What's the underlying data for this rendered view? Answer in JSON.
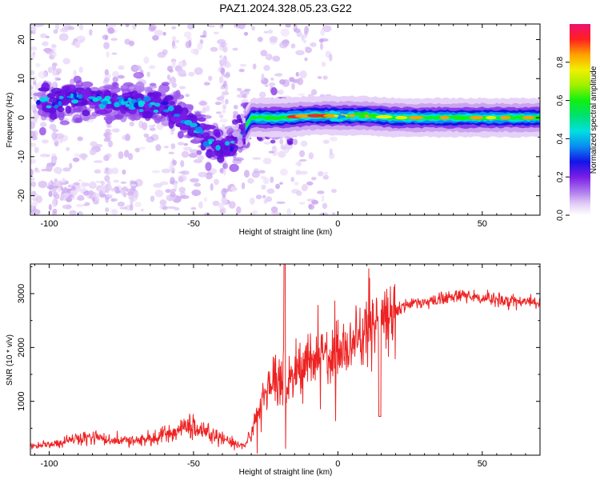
{
  "title": "PAZ1.2024.328.05.23.G22",
  "chart_data": [
    {
      "type": "heatmap",
      "xlabel": "Height of straight line (km)",
      "ylabel": "Frequency (Hz)",
      "xlim": [
        -106.5,
        70
      ],
      "ylim": [
        -25,
        24
      ],
      "xticks": [
        -100,
        -50,
        0,
        50
      ],
      "yticks": [
        -20,
        -10,
        0,
        10,
        20
      ],
      "colorbar": {
        "label": "Normalized spectral amplitude",
        "range": [
          0,
          1
        ],
        "ticks": [
          0.0,
          0.2,
          0.4,
          0.6,
          0.8
        ]
      },
      "ridge": [
        {
          "x": -100,
          "y": 4
        },
        {
          "x": -90,
          "y": 5
        },
        {
          "x": -80,
          "y": 4
        },
        {
          "x": -70,
          "y": 4
        },
        {
          "x": -60,
          "y": 3
        },
        {
          "x": -50,
          "y": -2
        },
        {
          "x": -45,
          "y": -6
        },
        {
          "x": -40,
          "y": -8
        },
        {
          "x": -35,
          "y": -6
        },
        {
          "x": -30,
          "y": 0
        },
        {
          "x": -20,
          "y": 0
        },
        {
          "x": -10,
          "y": 0.5
        },
        {
          "x": 0,
          "y": 0.5
        },
        {
          "x": 10,
          "y": 0.5
        },
        {
          "x": 20,
          "y": 0
        },
        {
          "x": 30,
          "y": 0
        },
        {
          "x": 40,
          "y": 0
        },
        {
          "x": 50,
          "y": 0
        },
        {
          "x": 60,
          "y": 0
        },
        {
          "x": 70,
          "y": 0
        }
      ]
    },
    {
      "type": "line",
      "xlabel": "Height of straight line (km)",
      "ylabel": "SNR (10 * v/v)",
      "xlim": [
        -106.5,
        70
      ],
      "ylim": [
        0,
        3550
      ],
      "xticks": [
        -100,
        -50,
        0,
        50
      ],
      "yticks": [
        1000,
        2000,
        3000
      ],
      "color": "#ee2222",
      "series": [
        {
          "x": [
            -106,
            -100,
            -95,
            -90,
            -85,
            -80,
            -75,
            -70,
            -65,
            -60,
            -55,
            -50,
            -45,
            -40,
            -35,
            -32,
            -30,
            -28,
            -25,
            -22,
            -20,
            -18,
            -15,
            -12,
            -10,
            -8,
            -5,
            -2,
            0,
            3,
            5,
            8,
            10,
            13,
            15,
            18,
            20,
            23,
            25,
            28,
            30,
            35,
            40,
            45,
            50,
            55,
            60,
            65,
            70
          ],
          "values": [
            150,
            200,
            250,
            300,
            320,
            300,
            280,
            270,
            300,
            380,
            480,
            550,
            420,
            300,
            200,
            180,
            400,
            800,
            1200,
            1300,
            1350,
            1350,
            1500,
            1650,
            1700,
            1750,
            1800,
            1850,
            1900,
            2000,
            2100,
            2200,
            2300,
            2450,
            2500,
            2600,
            2650,
            2750,
            2800,
            2850,
            2850,
            2900,
            2950,
            2950,
            2900,
            2900,
            2850,
            2850,
            2850
          ]
        }
      ]
    }
  ]
}
